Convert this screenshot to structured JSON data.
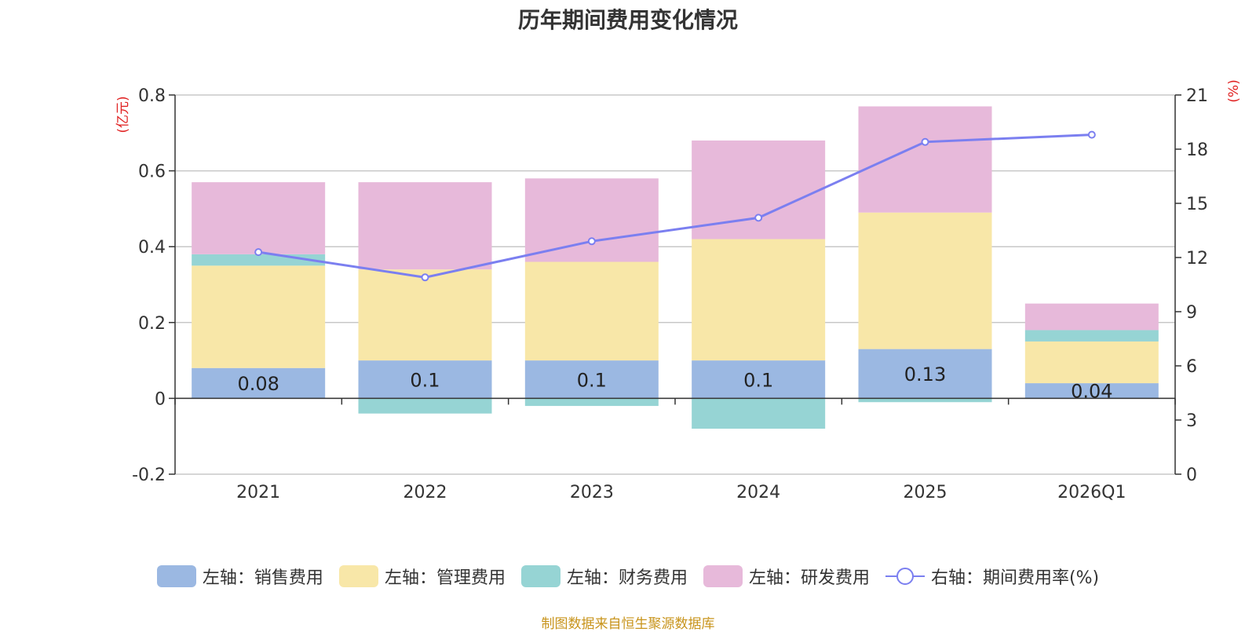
{
  "chart_data": {
    "type": "bar",
    "stacked": true,
    "title": "历年期间费用变化情况",
    "categories": [
      "2021",
      "2022",
      "2023",
      "2024",
      "2025",
      "2026Q1"
    ],
    "left_axis": {
      "unit_label": "(亿元)",
      "min": -0.2,
      "max": 0.8,
      "ticks": [
        -0.2,
        0,
        0.2,
        0.4,
        0.6,
        0.8
      ],
      "tick_labels": [
        "-0.2",
        "0",
        "0.2",
        "0.4",
        "0.6",
        "0.8"
      ]
    },
    "right_axis": {
      "unit_label": "(%)",
      "min": 0,
      "max": 21,
      "ticks": [
        0,
        3,
        6,
        9,
        12,
        15,
        18,
        21
      ],
      "tick_labels": [
        "0",
        "3",
        "6",
        "9",
        "12",
        "15",
        "18",
        "21"
      ]
    },
    "series": [
      {
        "name": "左轴：销售费用",
        "axis": "left",
        "color": "#9bb8e2",
        "values": [
          0.08,
          0.1,
          0.1,
          0.1,
          0.13,
          0.04
        ],
        "labels": [
          "0.08",
          "0.1",
          "0.1",
          "0.1",
          "0.13",
          "0.04"
        ]
      },
      {
        "name": "左轴：管理费用",
        "axis": "left",
        "color": "#f8e7a8",
        "values": [
          0.27,
          0.24,
          0.26,
          0.32,
          0.36,
          0.11
        ]
      },
      {
        "name": "左轴：财务费用",
        "axis": "left",
        "color": "#96d4d4",
        "values": [
          0.03,
          -0.04,
          -0.02,
          -0.08,
          -0.01,
          0.03
        ]
      },
      {
        "name": "左轴：研发费用",
        "axis": "left",
        "color": "#e7b9da",
        "values": [
          0.19,
          0.23,
          0.22,
          0.26,
          0.28,
          0.07
        ]
      },
      {
        "name": "右轴：期间费用率(%)",
        "axis": "right",
        "type": "line",
        "color": "#7b7ff0",
        "values": [
          12.3,
          10.9,
          12.9,
          14.2,
          18.4,
          18.8
        ]
      }
    ],
    "source": "制图数据来自恒生聚源数据库"
  }
}
